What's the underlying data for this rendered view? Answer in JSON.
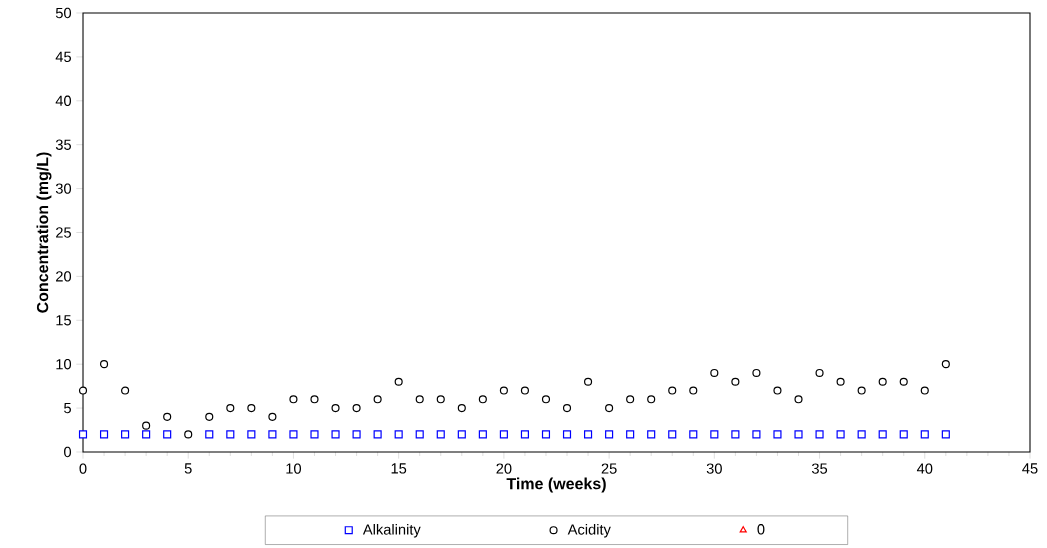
{
  "chart_data": {
    "type": "scatter",
    "xlabel": "Time (weeks)",
    "ylabel": "Concentration (mg/L)",
    "x": [
      0,
      1,
      2,
      3,
      4,
      5,
      6,
      7,
      8,
      9,
      10,
      11,
      12,
      13,
      14,
      15,
      16,
      17,
      18,
      19,
      20,
      21,
      22,
      23,
      24,
      25,
      26,
      27,
      28,
      29,
      30,
      31,
      32,
      33,
      34,
      35,
      36,
      37,
      38,
      39,
      40,
      41
    ],
    "series": [
      {
        "name": "Alkalinity",
        "color": "#0000ff",
        "marker": "square",
        "values": [
          2,
          2,
          2,
          2,
          2,
          null,
          2,
          2,
          2,
          2,
          2,
          2,
          2,
          2,
          2,
          2,
          2,
          2,
          2,
          2,
          2,
          2,
          2,
          2,
          2,
          2,
          2,
          2,
          2,
          2,
          2,
          2,
          2,
          2,
          2,
          2,
          2,
          2,
          2,
          2,
          2,
          2
        ]
      },
      {
        "name": "Acidity",
        "color": "#000000",
        "marker": "circle",
        "values": [
          7,
          10,
          7,
          3,
          4,
          2,
          4,
          5,
          5,
          4,
          6,
          6,
          5,
          5,
          6,
          8,
          6,
          6,
          5,
          6,
          7,
          7,
          6,
          5,
          8,
          5,
          6,
          6,
          7,
          7,
          9,
          8,
          9,
          7,
          6,
          9,
          8,
          7,
          8,
          8,
          7,
          10
        ]
      },
      {
        "name": "0",
        "color": "#ff0000",
        "marker": "triangle",
        "values": [
          null,
          null,
          null,
          null,
          null,
          null,
          null,
          null,
          null,
          null,
          null,
          null,
          null,
          null,
          null,
          null,
          null,
          null,
          null,
          null,
          null,
          null,
          null,
          null,
          null,
          null,
          null,
          null,
          null,
          null,
          null,
          null,
          null,
          null,
          null,
          null,
          null,
          null,
          null,
          null,
          null,
          null
        ]
      }
    ],
    "xlim": [
      0,
      45
    ],
    "xticks": [
      0,
      5,
      10,
      15,
      20,
      25,
      30,
      35,
      40,
      45
    ],
    "ylim": [
      0,
      50
    ],
    "yticks": [
      0,
      5,
      10,
      15,
      20,
      25,
      30,
      35,
      40,
      45,
      50
    ],
    "legend": "bottom",
    "grid": false
  }
}
